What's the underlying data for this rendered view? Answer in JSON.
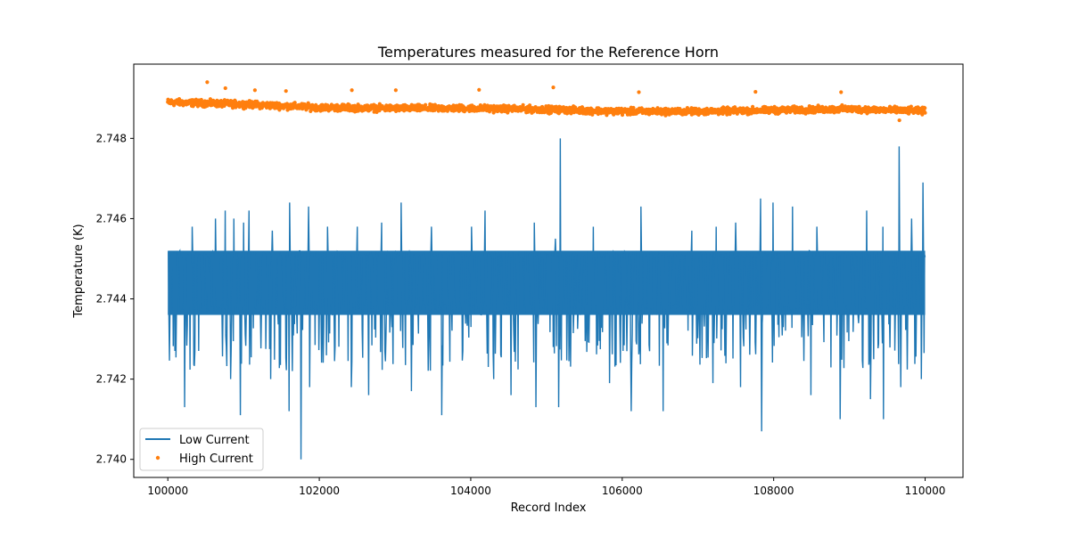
{
  "chart_data": {
    "type": "line",
    "title": "Temperatures measured for the Reference Horn",
    "xlabel": "Record Index",
    "ylabel": "Temperature (K)",
    "xlim": [
      99550,
      110500
    ],
    "ylim": [
      2.73955,
      2.74985
    ],
    "xticks": [
      100000,
      102000,
      104000,
      106000,
      108000,
      110000
    ],
    "xtick_labels": [
      "100000",
      "102000",
      "104000",
      "106000",
      "108000",
      "110000"
    ],
    "yticks": [
      2.74,
      2.742,
      2.744,
      2.746,
      2.748
    ],
    "ytick_labels": [
      "2.740",
      "2.742",
      "2.744",
      "2.746",
      "2.748"
    ],
    "grid": false,
    "legend": {
      "position": "lower-left",
      "entries": [
        "Low Current",
        "High Current"
      ]
    },
    "colors": {
      "low": "#1f77b4",
      "high": "#ff7f0e"
    },
    "series": [
      {
        "name": "Low Current",
        "style": "line",
        "x_range": [
          100000,
          110000
        ],
        "band_low": 2.7436,
        "band_high": 2.7452,
        "spikes_up": [
          {
            "x": 100320,
            "y": 2.7458
          },
          {
            "x": 100630,
            "y": 2.746
          },
          {
            "x": 100760,
            "y": 2.7462
          },
          {
            "x": 100870,
            "y": 2.746
          },
          {
            "x": 101000,
            "y": 2.7459
          },
          {
            "x": 101070,
            "y": 2.7462
          },
          {
            "x": 101380,
            "y": 2.7457
          },
          {
            "x": 101610,
            "y": 2.7464
          },
          {
            "x": 101860,
            "y": 2.7463
          },
          {
            "x": 102110,
            "y": 2.7458
          },
          {
            "x": 102500,
            "y": 2.7458
          },
          {
            "x": 102820,
            "y": 2.7459
          },
          {
            "x": 103080,
            "y": 2.7464
          },
          {
            "x": 103480,
            "y": 2.7458
          },
          {
            "x": 104010,
            "y": 2.7458
          },
          {
            "x": 104190,
            "y": 2.7462
          },
          {
            "x": 104840,
            "y": 2.7459
          },
          {
            "x": 105120,
            "y": 2.7455
          },
          {
            "x": 105180,
            "y": 2.748
          },
          {
            "x": 105620,
            "y": 2.7458
          },
          {
            "x": 106250,
            "y": 2.7463
          },
          {
            "x": 106920,
            "y": 2.7457
          },
          {
            "x": 107240,
            "y": 2.7458
          },
          {
            "x": 107500,
            "y": 2.7459
          },
          {
            "x": 107830,
            "y": 2.7465
          },
          {
            "x": 107990,
            "y": 2.7464
          },
          {
            "x": 108250,
            "y": 2.7463
          },
          {
            "x": 108570,
            "y": 2.7458
          },
          {
            "x": 109230,
            "y": 2.7462
          },
          {
            "x": 109440,
            "y": 2.7458
          },
          {
            "x": 109660,
            "y": 2.7478
          },
          {
            "x": 109820,
            "y": 2.746
          },
          {
            "x": 109970,
            "y": 2.7469
          }
        ],
        "spikes_down": [
          {
            "x": 100220,
            "y": 2.7413
          },
          {
            "x": 100830,
            "y": 2.742
          },
          {
            "x": 100960,
            "y": 2.7411
          },
          {
            "x": 101360,
            "y": 2.742
          },
          {
            "x": 101600,
            "y": 2.7412
          },
          {
            "x": 101760,
            "y": 2.74
          },
          {
            "x": 101870,
            "y": 2.7418
          },
          {
            "x": 102420,
            "y": 2.7418
          },
          {
            "x": 102650,
            "y": 2.7416
          },
          {
            "x": 103220,
            "y": 2.7417
          },
          {
            "x": 103620,
            "y": 2.7411
          },
          {
            "x": 104300,
            "y": 2.742
          },
          {
            "x": 104530,
            "y": 2.7416
          },
          {
            "x": 104860,
            "y": 2.7413
          },
          {
            "x": 105160,
            "y": 2.7413
          },
          {
            "x": 105830,
            "y": 2.7419
          },
          {
            "x": 106120,
            "y": 2.7412
          },
          {
            "x": 106540,
            "y": 2.7412
          },
          {
            "x": 107200,
            "y": 2.7419
          },
          {
            "x": 107560,
            "y": 2.7418
          },
          {
            "x": 107840,
            "y": 2.7407
          },
          {
            "x": 108490,
            "y": 2.7416
          },
          {
            "x": 108880,
            "y": 2.741
          },
          {
            "x": 109280,
            "y": 2.7415
          },
          {
            "x": 109450,
            "y": 2.741
          },
          {
            "x": 109680,
            "y": 2.7418
          },
          {
            "x": 109950,
            "y": 2.742
          }
        ]
      },
      {
        "name": "High Current",
        "style": "scatter",
        "x_range": [
          100000,
          110000
        ],
        "trend": [
          {
            "x": 100000,
            "y": 2.7489
          },
          {
            "x": 101000,
            "y": 2.74885
          },
          {
            "x": 102000,
            "y": 2.74877
          },
          {
            "x": 103000,
            "y": 2.74875
          },
          {
            "x": 104000,
            "y": 2.74875
          },
          {
            "x": 105000,
            "y": 2.74872
          },
          {
            "x": 106000,
            "y": 2.74867
          },
          {
            "x": 107000,
            "y": 2.74867
          },
          {
            "x": 108000,
            "y": 2.7487
          },
          {
            "x": 109000,
            "y": 2.74873
          },
          {
            "x": 110000,
            "y": 2.74868
          }
        ],
        "spread": 0.00012,
        "outliers": [
          {
            "x": 100520,
            "y": 2.7494
          },
          {
            "x": 100760,
            "y": 2.74925
          },
          {
            "x": 101150,
            "y": 2.7492
          },
          {
            "x": 101560,
            "y": 2.74918
          },
          {
            "x": 102430,
            "y": 2.7492
          },
          {
            "x": 103010,
            "y": 2.7492
          },
          {
            "x": 104110,
            "y": 2.74921
          },
          {
            "x": 105090,
            "y": 2.74927
          },
          {
            "x": 106220,
            "y": 2.74915
          },
          {
            "x": 107760,
            "y": 2.74916
          },
          {
            "x": 108890,
            "y": 2.74915
          },
          {
            "x": 109660,
            "y": 2.74845
          }
        ]
      }
    ]
  }
}
